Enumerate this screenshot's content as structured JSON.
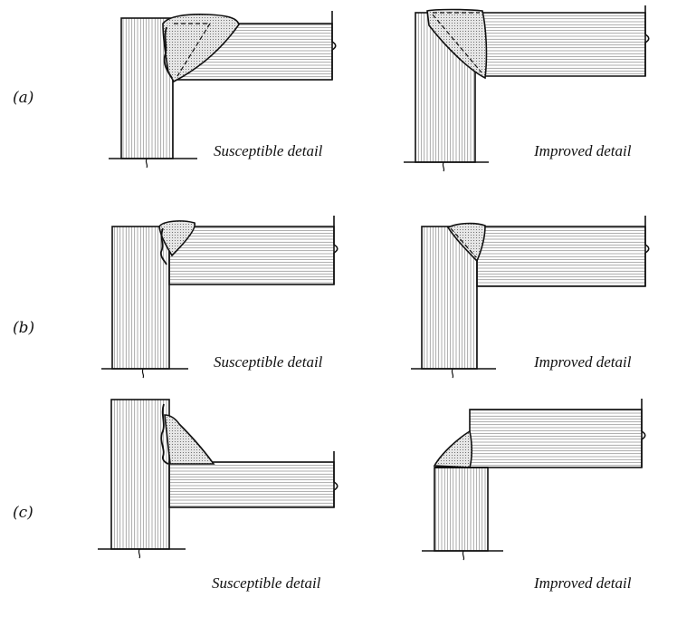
{
  "rows": [
    {
      "label": "(a)",
      "left_caption": "Susceptible detail",
      "right_caption": "Improved detail"
    },
    {
      "label": "(b)",
      "left_caption": "Susceptible detail",
      "right_caption": "Improved detail"
    },
    {
      "label": "(c)",
      "left_caption": "Susceptible detail",
      "right_caption": "Improved detail"
    }
  ]
}
